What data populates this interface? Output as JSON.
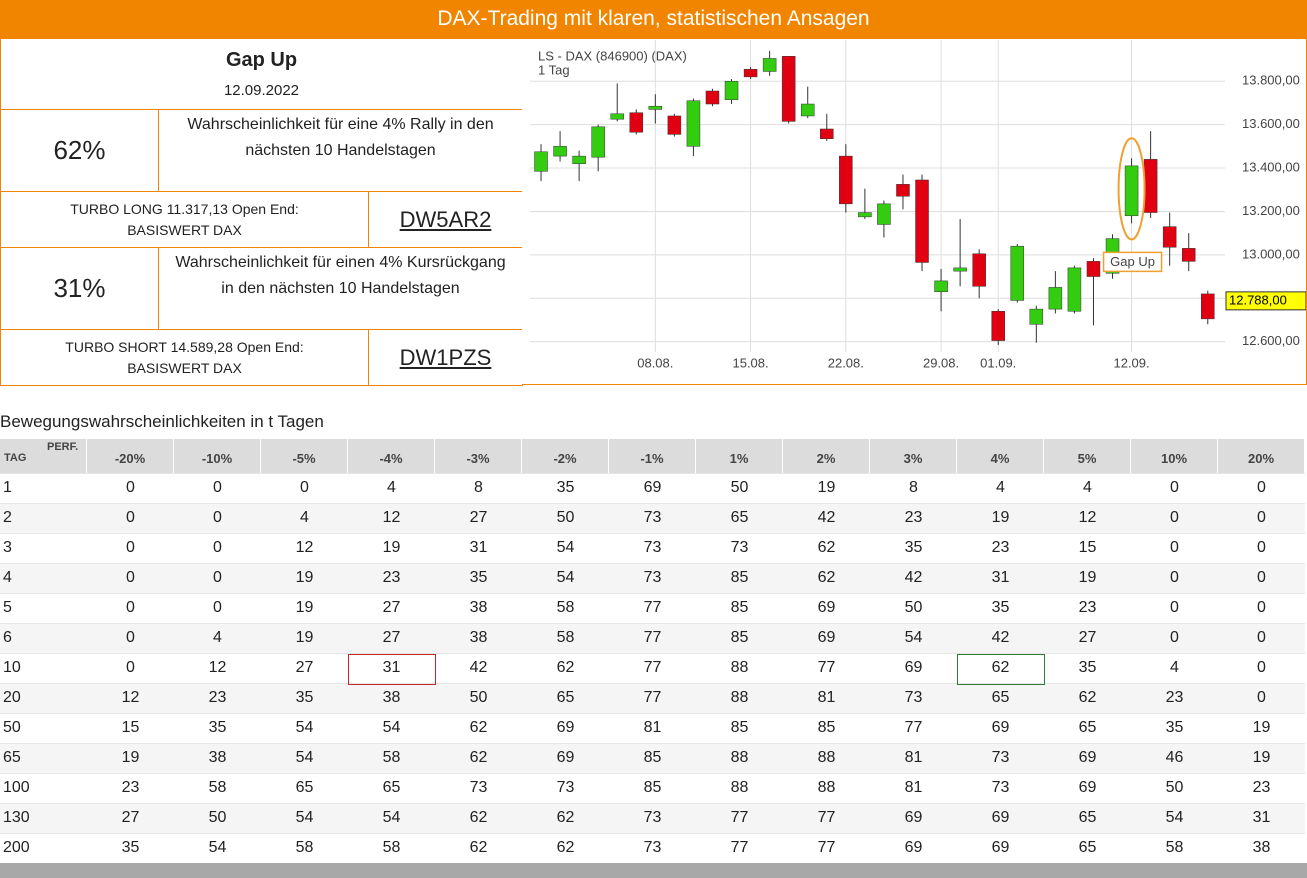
{
  "header": {
    "title": "DAX-Trading mit klaren, statistischen Ansagen"
  },
  "panel": {
    "signal": "Gap Up",
    "date": "12.09.2022",
    "long": {
      "probability": "62%",
      "text": "Wahrscheinlichkeit für eine 4% Rally in den nächsten 10 Handelstagen",
      "product": [
        "TURBO LONG 11.317,13 Open End:",
        "BASISWERT DAX"
      ],
      "wkn": "DW5AR2"
    },
    "short": {
      "probability": "31%",
      "text": "Wahrscheinlichkeit für einen 4% Kursrückgang in den nächsten 10 Handelstagen",
      "product": [
        "TURBO SHORT 14.589,28 Open End:",
        "BASISWERT DAX"
      ],
      "wkn": "DW1PZS"
    }
  },
  "chart_data": {
    "type": "candlestick",
    "title": "LS - DAX (846900) (DAX)",
    "subtitle": "1 Tag",
    "categories": [
      null,
      null,
      null,
      null,
      null,
      null,
      "08.08.",
      null,
      null,
      null,
      null,
      "15.08.",
      null,
      null,
      null,
      null,
      "22.08.",
      null,
      null,
      null,
      null,
      "29.08.",
      null,
      null,
      "01.09.",
      null,
      null,
      null,
      null,
      null,
      null,
      "12.09.",
      null,
      null,
      null,
      null
    ],
    "open": [
      13385,
      13455,
      13420,
      13450,
      13625,
      13655,
      13670,
      13640,
      13500,
      13755,
      13715,
      13855,
      13845,
      13915,
      13640,
      13580,
      13455,
      13175,
      13140,
      13325,
      13345,
      12830,
      12925,
      13005,
      12740,
      12790,
      12680,
      12750,
      12740,
      12970,
      12915,
      13180,
      13440,
      13130,
      13030,
      12820
    ],
    "high": [
      13510,
      13570,
      13480,
      13600,
      13790,
      13670,
      13740,
      13650,
      13720,
      13765,
      13810,
      13865,
      13940,
      13915,
      13775,
      13650,
      13510,
      13305,
      13250,
      13370,
      13370,
      12935,
      13165,
      13025,
      12750,
      13050,
      12765,
      12925,
      12950,
      12985,
      13095,
      13445,
      13570,
      13195,
      13100,
      12835
    ],
    "low": [
      13340,
      13430,
      13340,
      13385,
      13615,
      13555,
      13605,
      13545,
      13455,
      13685,
      13695,
      13810,
      13825,
      13605,
      13630,
      13525,
      13195,
      13165,
      13080,
      13210,
      12925,
      12740,
      12855,
      12800,
      12585,
      12780,
      12595,
      12730,
      12730,
      12675,
      12890,
      13145,
      13170,
      12950,
      12925,
      12680
    ],
    "close": [
      13475,
      13500,
      13455,
      13590,
      13650,
      13565,
      13685,
      13555,
      13710,
      13695,
      13800,
      13820,
      13905,
      13615,
      13695,
      13535,
      13235,
      13195,
      13235,
      13270,
      12965,
      12880,
      12940,
      12855,
      12605,
      13040,
      12750,
      12850,
      12940,
      12900,
      13075,
      13410,
      13195,
      13035,
      12970,
      12705
    ],
    "up_color": "#33cc11",
    "down_color": "#e00012",
    "ylim": [
      12580,
      13990
    ],
    "yticks": [
      {
        "value": 12600,
        "label": "12.600,00"
      },
      {
        "value": 12800,
        "label": "12.800,00"
      },
      {
        "value": 13000,
        "label": "13.000,00"
      },
      {
        "value": 13200,
        "label": "13.200,00"
      },
      {
        "value": 13400,
        "label": "13.400,00"
      },
      {
        "value": 13600,
        "label": "13.600,00"
      },
      {
        "value": 13800,
        "label": "13.800,00"
      }
    ],
    "grid": true,
    "last_price": {
      "value": 12788,
      "label": "12.788,00"
    },
    "annotation": {
      "text": "Gap Up",
      "index": 31,
      "color": "#f0a030"
    }
  },
  "table": {
    "title": "Bewegungswahrscheinlichkeiten in t Tagen",
    "row_header": "TAG",
    "col_header": "PERF.",
    "columns": [
      "-20%",
      "-10%",
      "-5%",
      "-4%",
      "-3%",
      "-2%",
      "-1%",
      "1%",
      "2%",
      "3%",
      "4%",
      "5%",
      "10%",
      "20%"
    ],
    "rows": [
      {
        "tag": 1,
        "values": [
          0,
          0,
          0,
          4,
          8,
          35,
          69,
          50,
          19,
          8,
          4,
          4,
          0,
          0
        ]
      },
      {
        "tag": 2,
        "values": [
          0,
          0,
          4,
          12,
          27,
          50,
          73,
          65,
          42,
          23,
          19,
          12,
          0,
          0
        ]
      },
      {
        "tag": 3,
        "values": [
          0,
          0,
          12,
          19,
          31,
          54,
          73,
          73,
          62,
          35,
          23,
          15,
          0,
          0
        ]
      },
      {
        "tag": 4,
        "values": [
          0,
          0,
          19,
          23,
          35,
          54,
          73,
          85,
          62,
          42,
          31,
          19,
          0,
          0
        ]
      },
      {
        "tag": 5,
        "values": [
          0,
          0,
          19,
          27,
          38,
          58,
          77,
          85,
          69,
          50,
          35,
          23,
          0,
          0
        ]
      },
      {
        "tag": 6,
        "values": [
          0,
          4,
          19,
          27,
          38,
          58,
          77,
          85,
          69,
          54,
          42,
          27,
          0,
          0
        ]
      },
      {
        "tag": 10,
        "values": [
          0,
          12,
          27,
          31,
          42,
          62,
          77,
          88,
          77,
          69,
          62,
          35,
          4,
          0
        ]
      },
      {
        "tag": 20,
        "values": [
          12,
          23,
          35,
          38,
          50,
          65,
          77,
          88,
          81,
          73,
          65,
          62,
          23,
          0
        ]
      },
      {
        "tag": 50,
        "values": [
          15,
          35,
          54,
          54,
          62,
          69,
          81,
          85,
          85,
          77,
          69,
          65,
          35,
          19
        ]
      },
      {
        "tag": 65,
        "values": [
          19,
          38,
          54,
          58,
          62,
          69,
          85,
          88,
          88,
          81,
          73,
          69,
          46,
          19
        ]
      },
      {
        "tag": 100,
        "values": [
          23,
          58,
          65,
          65,
          73,
          73,
          85,
          88,
          88,
          81,
          73,
          69,
          50,
          23
        ]
      },
      {
        "tag": 130,
        "values": [
          27,
          50,
          54,
          54,
          62,
          62,
          73,
          77,
          77,
          69,
          69,
          65,
          54,
          31
        ]
      },
      {
        "tag": 200,
        "values": [
          35,
          54,
          58,
          58,
          62,
          62,
          73,
          77,
          77,
          69,
          69,
          65,
          58,
          38
        ]
      }
    ],
    "highlights": [
      {
        "row": 6,
        "col": 3,
        "color": "#c62828"
      },
      {
        "row": 6,
        "col": 10,
        "color": "#2e7d32"
      }
    ]
  }
}
